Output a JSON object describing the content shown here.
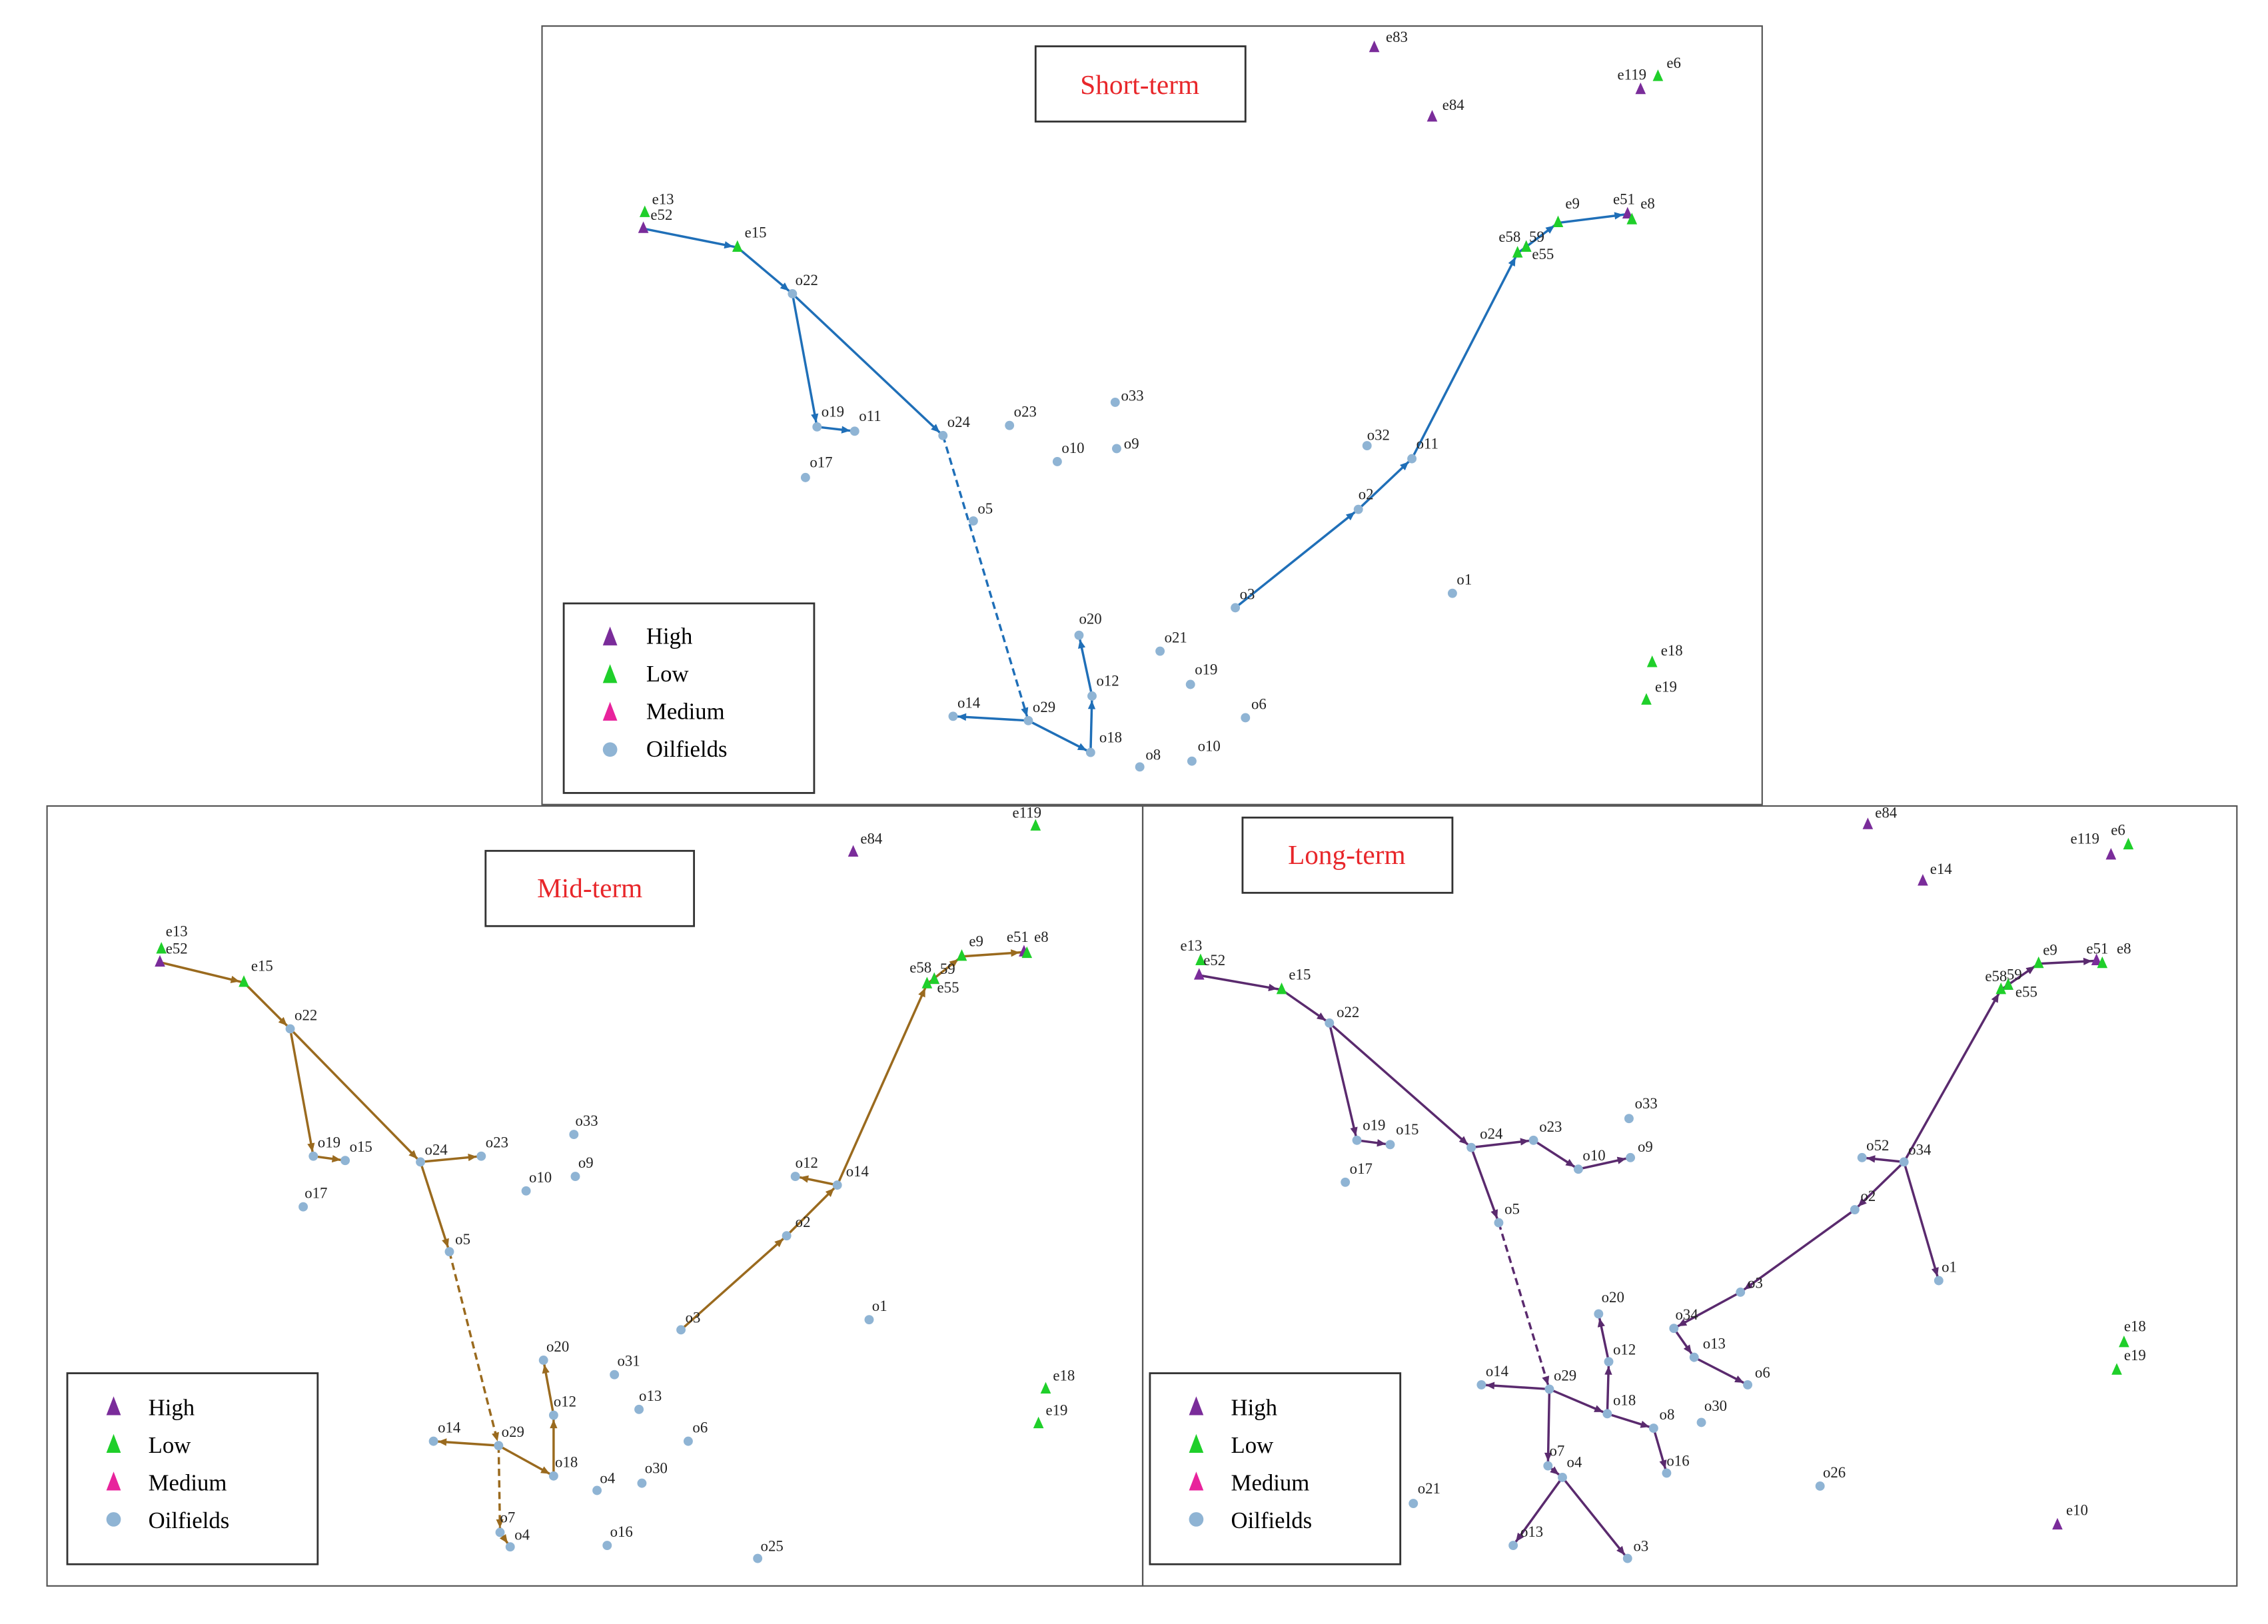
{
  "legend": {
    "high": "High",
    "low": "Low",
    "medium": "Medium",
    "oilfields": "Oilfields"
  },
  "colors": {
    "high": "#7a2c9a",
    "low": "#1fcf2a",
    "medium": "#e8239c",
    "oilfield": "#8fb4d4",
    "short_term": "#1f6fb8",
    "mid_term": "#9a6a1e",
    "long_term": "#5a2a6e",
    "title_text": "#e8262a"
  },
  "panels": [
    {
      "id": "short",
      "title": "Short-term",
      "nodes": [
        {
          "id": "e83",
          "label": "e83",
          "kind": "high"
        },
        {
          "id": "e119",
          "label": "e119",
          "kind": "high"
        },
        {
          "id": "e6",
          "label": "e6",
          "kind": "low"
        },
        {
          "id": "e84",
          "label": "e84",
          "kind": "high"
        },
        {
          "id": "e13",
          "label": "e13",
          "kind": "low"
        },
        {
          "id": "e52",
          "label": "e52",
          "kind": "high"
        },
        {
          "id": "e15",
          "label": "e15",
          "kind": "low"
        },
        {
          "id": "e51",
          "label": "e51",
          "kind": "high"
        },
        {
          "id": "e8",
          "label": "e8",
          "kind": "low"
        },
        {
          "id": "e9",
          "label": "e9",
          "kind": "low"
        },
        {
          "id": "e58",
          "label": "e58",
          "kind": "low"
        },
        {
          "id": "e59",
          "label": "59",
          "kind": "high"
        },
        {
          "id": "e55",
          "label": "e55",
          "kind": "low"
        },
        {
          "id": "e18",
          "label": "e18",
          "kind": "low"
        },
        {
          "id": "e19",
          "label": "e19",
          "kind": "low"
        },
        {
          "id": "o22",
          "label": "o22",
          "kind": "oil"
        },
        {
          "id": "o19",
          "label": "o19",
          "kind": "oil"
        },
        {
          "id": "o11a",
          "label": "o11",
          "kind": "oil"
        },
        {
          "id": "o17",
          "label": "o17",
          "kind": "oil"
        },
        {
          "id": "o24",
          "label": "o24",
          "kind": "oil"
        },
        {
          "id": "o23",
          "label": "o23",
          "kind": "oil"
        },
        {
          "id": "o33",
          "label": "o33",
          "kind": "oil"
        },
        {
          "id": "o10a",
          "label": "o10",
          "kind": "oil"
        },
        {
          "id": "o9",
          "label": "o9",
          "kind": "oil"
        },
        {
          "id": "o32",
          "label": "o32",
          "kind": "oil"
        },
        {
          "id": "o11b",
          "label": "o11",
          "kind": "oil"
        },
        {
          "id": "o5",
          "label": "o5",
          "kind": "oil"
        },
        {
          "id": "o2",
          "label": "o2",
          "kind": "oil"
        },
        {
          "id": "o1",
          "label": "o1",
          "kind": "oil"
        },
        {
          "id": "o3",
          "label": "o3",
          "kind": "oil"
        },
        {
          "id": "o20",
          "label": "o20",
          "kind": "oil"
        },
        {
          "id": "o21",
          "label": "o21",
          "kind": "oil"
        },
        {
          "id": "o12",
          "label": "o12",
          "kind": "oil"
        },
        {
          "id": "o19b",
          "label": "o19",
          "kind": "oil"
        },
        {
          "id": "o14",
          "label": "o14",
          "kind": "oil"
        },
        {
          "id": "o29",
          "label": "o29",
          "kind": "oil"
        },
        {
          "id": "o6",
          "label": "o6",
          "kind": "oil"
        },
        {
          "id": "o18",
          "label": "o18",
          "kind": "oil"
        },
        {
          "id": "o8",
          "label": "o8",
          "kind": "oil"
        },
        {
          "id": "o10b",
          "label": "o10",
          "kind": "oil"
        }
      ],
      "edges": [
        {
          "from": "e52",
          "to": "e15"
        },
        {
          "from": "e15",
          "to": "o22"
        },
        {
          "from": "o22",
          "to": "o19"
        },
        {
          "from": "o19",
          "to": "o11a"
        },
        {
          "from": "o22",
          "to": "o24"
        },
        {
          "from": "o24",
          "to": "o29",
          "dashed": true
        },
        {
          "from": "o29",
          "to": "o14"
        },
        {
          "from": "o29",
          "to": "o18"
        },
        {
          "from": "o18",
          "to": "o12"
        },
        {
          "from": "o12",
          "to": "o20"
        },
        {
          "from": "o3",
          "to": "o2"
        },
        {
          "from": "o2",
          "to": "o11b"
        },
        {
          "from": "o11b",
          "to": "e58"
        },
        {
          "from": "e58",
          "to": "e9"
        },
        {
          "from": "e9",
          "to": "e51"
        }
      ]
    },
    {
      "id": "mid",
      "title": "Mid-term",
      "nodes": [
        {
          "id": "e119",
          "label": "e119",
          "kind": "low"
        },
        {
          "id": "e84",
          "label": "e84",
          "kind": "high"
        },
        {
          "id": "e13",
          "label": "e13",
          "kind": "low"
        },
        {
          "id": "e52",
          "label": "e52",
          "kind": "high"
        },
        {
          "id": "e15",
          "label": "e15",
          "kind": "low"
        },
        {
          "id": "e51",
          "label": "e51",
          "kind": "high"
        },
        {
          "id": "e8",
          "label": "e8",
          "kind": "low"
        },
        {
          "id": "e9",
          "label": "e9",
          "kind": "low"
        },
        {
          "id": "e58",
          "label": "e58",
          "kind": "low"
        },
        {
          "id": "e59",
          "label": "59",
          "kind": "high"
        },
        {
          "id": "e55",
          "label": "e55",
          "kind": "low"
        },
        {
          "id": "e18",
          "label": "e18",
          "kind": "low"
        },
        {
          "id": "e19",
          "label": "e19",
          "kind": "low"
        },
        {
          "id": "o22",
          "label": "o22",
          "kind": "oil"
        },
        {
          "id": "o19",
          "label": "o19",
          "kind": "oil"
        },
        {
          "id": "o15",
          "label": "o15",
          "kind": "oil"
        },
        {
          "id": "o17",
          "label": "o17",
          "kind": "oil"
        },
        {
          "id": "o24",
          "label": "o24",
          "kind": "oil"
        },
        {
          "id": "o23",
          "label": "o23",
          "kind": "oil"
        },
        {
          "id": "o33",
          "label": "o33",
          "kind": "oil"
        },
        {
          "id": "o10",
          "label": "o10",
          "kind": "oil"
        },
        {
          "id": "o9",
          "label": "o9",
          "kind": "oil"
        },
        {
          "id": "o12a",
          "label": "o12",
          "kind": "oil"
        },
        {
          "id": "o14a",
          "label": "o14",
          "kind": "oil"
        },
        {
          "id": "o5",
          "label": "o5",
          "kind": "oil"
        },
        {
          "id": "o2",
          "label": "o2",
          "kind": "oil"
        },
        {
          "id": "o1",
          "label": "o1",
          "kind": "oil"
        },
        {
          "id": "o3",
          "label": "o3",
          "kind": "oil"
        },
        {
          "id": "o20",
          "label": "o20",
          "kind": "oil"
        },
        {
          "id": "o31",
          "label": "o31",
          "kind": "oil"
        },
        {
          "id": "o12b",
          "label": "o12",
          "kind": "oil"
        },
        {
          "id": "o13",
          "label": "o13",
          "kind": "oil"
        },
        {
          "id": "o6",
          "label": "o6",
          "kind": "oil"
        },
        {
          "id": "o14b",
          "label": "o14",
          "kind": "oil"
        },
        {
          "id": "o29",
          "label": "o29",
          "kind": "oil"
        },
        {
          "id": "o18",
          "label": "o18",
          "kind": "oil"
        },
        {
          "id": "o4a",
          "label": "o4",
          "kind": "oil"
        },
        {
          "id": "o30",
          "label": "o30",
          "kind": "oil"
        },
        {
          "id": "o7",
          "label": "o7",
          "kind": "oil"
        },
        {
          "id": "o4b",
          "label": "o4",
          "kind": "oil"
        },
        {
          "id": "o16",
          "label": "o16",
          "kind": "oil"
        },
        {
          "id": "o25",
          "label": "o25",
          "kind": "oil"
        }
      ],
      "edges": [
        {
          "from": "e52",
          "to": "e15"
        },
        {
          "from": "e15",
          "to": "o22"
        },
        {
          "from": "o22",
          "to": "o19"
        },
        {
          "from": "o19",
          "to": "o15"
        },
        {
          "from": "o22",
          "to": "o24"
        },
        {
          "from": "o24",
          "to": "o23"
        },
        {
          "from": "o24",
          "to": "o5"
        },
        {
          "from": "o5",
          "to": "o29",
          "dashed": true
        },
        {
          "from": "o29",
          "to": "o14b"
        },
        {
          "from": "o29",
          "to": "o18"
        },
        {
          "from": "o29",
          "to": "o7",
          "dashed": true
        },
        {
          "from": "o7",
          "to": "o4b"
        },
        {
          "from": "o18",
          "to": "o12b"
        },
        {
          "from": "o12b",
          "to": "o20"
        },
        {
          "from": "o3",
          "to": "o2"
        },
        {
          "from": "o2",
          "to": "o14a"
        },
        {
          "from": "o14a",
          "to": "o12a"
        },
        {
          "from": "o14a",
          "to": "e58"
        },
        {
          "from": "e58",
          "to": "e9"
        },
        {
          "from": "e9",
          "to": "e51"
        }
      ]
    },
    {
      "id": "long",
      "title": "Long-term",
      "nodes": [
        {
          "id": "e84",
          "label": "e84",
          "kind": "high"
        },
        {
          "id": "e14",
          "label": "e14",
          "kind": "high"
        },
        {
          "id": "e119",
          "label": "e119",
          "kind": "high"
        },
        {
          "id": "e6",
          "label": "e6",
          "kind": "low"
        },
        {
          "id": "e13",
          "label": "e13",
          "kind": "low"
        },
        {
          "id": "e52",
          "label": "e52",
          "kind": "high"
        },
        {
          "id": "e15",
          "label": "e15",
          "kind": "low"
        },
        {
          "id": "e51",
          "label": "e51",
          "kind": "high"
        },
        {
          "id": "e8",
          "label": "e8",
          "kind": "low"
        },
        {
          "id": "e9",
          "label": "e9",
          "kind": "low"
        },
        {
          "id": "e58",
          "label": "e58",
          "kind": "low"
        },
        {
          "id": "e59",
          "label": "59",
          "kind": "high"
        },
        {
          "id": "e55",
          "label": "e55",
          "kind": "low"
        },
        {
          "id": "e18",
          "label": "e18",
          "kind": "low"
        },
        {
          "id": "e19",
          "label": "e19",
          "kind": "low"
        },
        {
          "id": "e10",
          "label": "e10",
          "kind": "high"
        },
        {
          "id": "o22",
          "label": "o22",
          "kind": "oil"
        },
        {
          "id": "o19",
          "label": "o19",
          "kind": "oil"
        },
        {
          "id": "o15",
          "label": "o15",
          "kind": "oil"
        },
        {
          "id": "o17",
          "label": "o17",
          "kind": "oil"
        },
        {
          "id": "o24",
          "label": "o24",
          "kind": "oil"
        },
        {
          "id": "o23",
          "label": "o23",
          "kind": "oil"
        },
        {
          "id": "o33",
          "label": "o33",
          "kind": "oil"
        },
        {
          "id": "o10",
          "label": "o10",
          "kind": "oil"
        },
        {
          "id": "o9",
          "label": "o9",
          "kind": "oil"
        },
        {
          "id": "o52",
          "label": "o52",
          "kind": "oil"
        },
        {
          "id": "o34a",
          "label": "o34",
          "kind": "oil"
        },
        {
          "id": "o5",
          "label": "o5",
          "kind": "oil"
        },
        {
          "id": "o2",
          "label": "o2",
          "kind": "oil"
        },
        {
          "id": "o1",
          "label": "o1",
          "kind": "oil"
        },
        {
          "id": "o3a",
          "label": "o3",
          "kind": "oil"
        },
        {
          "id": "o34b",
          "label": "o34",
          "kind": "oil"
        },
        {
          "id": "o20",
          "label": "o20",
          "kind": "oil"
        },
        {
          "id": "o13a",
          "label": "o13",
          "kind": "oil"
        },
        {
          "id": "o12",
          "label": "o12",
          "kind": "oil"
        },
        {
          "id": "o6",
          "label": "o6",
          "kind": "oil"
        },
        {
          "id": "o14",
          "label": "o14",
          "kind": "oil"
        },
        {
          "id": "o29",
          "label": "o29",
          "kind": "oil"
        },
        {
          "id": "o18",
          "label": "o18",
          "kind": "oil"
        },
        {
          "id": "o8",
          "label": "o8",
          "kind": "oil"
        },
        {
          "id": "o30",
          "label": "o30",
          "kind": "oil"
        },
        {
          "id": "o16",
          "label": "o16",
          "kind": "oil"
        },
        {
          "id": "o7",
          "label": "o7",
          "kind": "oil"
        },
        {
          "id": "o4",
          "label": "o4",
          "kind": "oil"
        },
        {
          "id": "o21",
          "label": "o21",
          "kind": "oil"
        },
        {
          "id": "o26",
          "label": "o26",
          "kind": "oil"
        },
        {
          "id": "o13b",
          "label": "o13",
          "kind": "oil"
        },
        {
          "id": "o3b",
          "label": "o3",
          "kind": "oil"
        }
      ],
      "edges": [
        {
          "from": "e52",
          "to": "e15"
        },
        {
          "from": "e15",
          "to": "o22"
        },
        {
          "from": "o22",
          "to": "o19"
        },
        {
          "from": "o19",
          "to": "o15"
        },
        {
          "from": "o22",
          "to": "o24"
        },
        {
          "from": "o24",
          "to": "o23"
        },
        {
          "from": "o23",
          "to": "o10"
        },
        {
          "from": "o10",
          "to": "o9"
        },
        {
          "from": "o24",
          "to": "o5"
        },
        {
          "from": "o5",
          "to": "o29",
          "dashed": true
        },
        {
          "from": "o29",
          "to": "o14"
        },
        {
          "from": "o29",
          "to": "o18"
        },
        {
          "from": "o18",
          "to": "o12"
        },
        {
          "from": "o12",
          "to": "o20"
        },
        {
          "from": "o18",
          "to": "o8"
        },
        {
          "from": "o8",
          "to": "o16"
        },
        {
          "from": "o29",
          "to": "o7"
        },
        {
          "from": "o7",
          "to": "o4"
        },
        {
          "from": "o4",
          "to": "o13b"
        },
        {
          "from": "o4",
          "to": "o3b"
        },
        {
          "from": "o34a",
          "to": "o52"
        },
        {
          "from": "o34a",
          "to": "o1"
        },
        {
          "from": "o34a",
          "to": "o2"
        },
        {
          "from": "o2",
          "to": "o3a"
        },
        {
          "from": "o3a",
          "to": "o34b"
        },
        {
          "from": "o34b",
          "to": "o13a"
        },
        {
          "from": "o13a",
          "to": "o6"
        },
        {
          "from": "o34a",
          "to": "e58"
        },
        {
          "from": "e58",
          "to": "e9"
        },
        {
          "from": "e9",
          "to": "e51"
        }
      ]
    }
  ]
}
